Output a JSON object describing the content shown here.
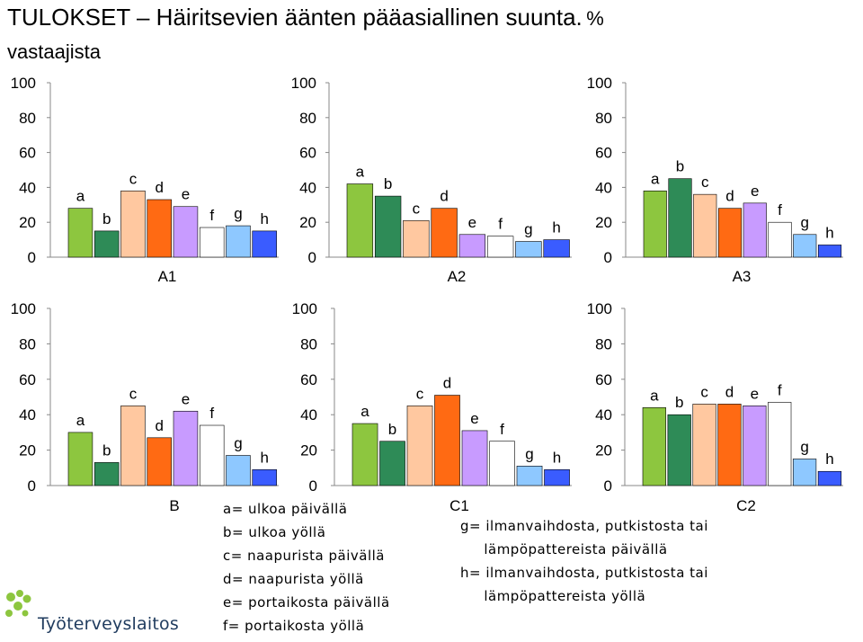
{
  "title": {
    "main": "TULOKSET – Häiritsevien äänten pääasiallinen suunta.",
    "suffix": "%",
    "line2": "vastaajista"
  },
  "series_colors": {
    "a": "#8dc63f",
    "b": "#2e8b57",
    "c": "#ffc8a0",
    "d": "#ff6a13",
    "e": "#c89bff",
    "f": "#ffffff",
    "g": "#8ec8ff",
    "h": "#3a5cff"
  },
  "chart_data": [
    {
      "type": "bar",
      "title": "A1",
      "categories": [
        "a",
        "b",
        "c",
        "d",
        "e",
        "f",
        "g",
        "h"
      ],
      "values": [
        28,
        15,
        38,
        33,
        29,
        17,
        18,
        15
      ],
      "ylim": [
        0,
        100
      ],
      "yticks": [
        "0",
        "20",
        "40",
        "60",
        "80",
        "100"
      ]
    },
    {
      "type": "bar",
      "title": "A2",
      "categories": [
        "a",
        "b",
        "c",
        "d",
        "e",
        "f",
        "g",
        "h"
      ],
      "values": [
        42,
        35,
        21,
        28,
        13,
        12,
        9,
        10
      ],
      "ylim": [
        0,
        100
      ],
      "yticks": [
        "0",
        "20",
        "40",
        "60",
        "80",
        "100"
      ]
    },
    {
      "type": "bar",
      "title": "A3",
      "categories": [
        "a",
        "b",
        "c",
        "d",
        "e",
        "f",
        "g",
        "h"
      ],
      "values": [
        38,
        45,
        36,
        28,
        31,
        20,
        13,
        7
      ],
      "ylim": [
        0,
        100
      ],
      "yticks": [
        "0",
        "20",
        "40",
        "60",
        "80",
        "100"
      ]
    },
    {
      "type": "bar",
      "title": "B",
      "categories": [
        "a",
        "b",
        "c",
        "d",
        "e",
        "f",
        "g",
        "h"
      ],
      "values": [
        30,
        13,
        45,
        27,
        42,
        34,
        17,
        9
      ],
      "ylim": [
        0,
        100
      ],
      "yticks": [
        "0",
        "20",
        "40",
        "60",
        "80",
        "100"
      ]
    },
    {
      "type": "bar",
      "title": "C1",
      "categories": [
        "a",
        "b",
        "c",
        "d",
        "e",
        "f",
        "g",
        "h"
      ],
      "values": [
        35,
        25,
        45,
        51,
        31,
        25,
        11,
        9
      ],
      "ylim": [
        0,
        100
      ],
      "yticks": [
        "0",
        "20",
        "40",
        "60",
        "80",
        "100"
      ]
    },
    {
      "type": "bar",
      "title": "C2",
      "categories": [
        "a",
        "b",
        "c",
        "d",
        "e",
        "f",
        "g",
        "h"
      ],
      "values": [
        44,
        40,
        46,
        46,
        45,
        47,
        15,
        8
      ],
      "ylim": [
        0,
        100
      ],
      "yticks": [
        "0",
        "20",
        "40",
        "60",
        "80",
        "100"
      ]
    }
  ],
  "legend_left": [
    "a= ulkoa päivällä",
    "b= ulkoa yöllä",
    "c= naapurista päivällä",
    "d= naapurista yöllä",
    "e= portaikosta päivällä",
    "f= portaikosta yöllä"
  ],
  "legend_right": [
    "g= ilmanvaihdosta, putkistosta tai",
    "     lämpöpattereista päivällä",
    "h= ilmanvaihdosta, putkistosta tai",
    "     lämpöpattereista yöllä"
  ],
  "logo": {
    "text": "Työterveyslaitos"
  }
}
